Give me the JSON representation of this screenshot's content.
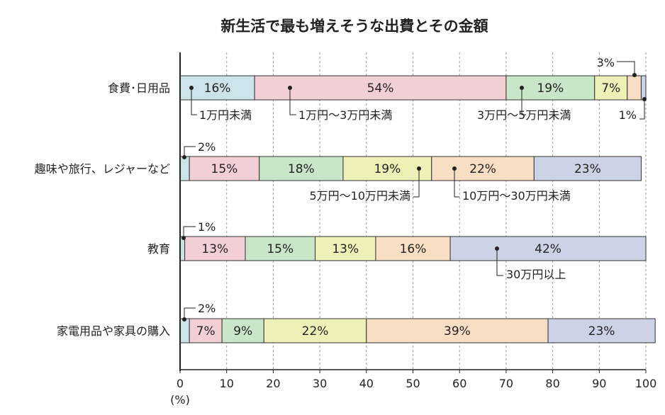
{
  "chart_data": {
    "type": "bar",
    "orientation": "horizontal",
    "stacked": true,
    "title": "新生活で最も増えそうな出費とその金額",
    "unit_label": "(%)",
    "xlim": [
      0,
      100
    ],
    "xticks": [
      "0",
      "10",
      "20",
      "30",
      "40",
      "50",
      "60",
      "70",
      "80",
      "90",
      "100"
    ],
    "grid": true,
    "categories": [
      "食費･日用品",
      "趣味や旅行、レジャーなど",
      "教育",
      "家電用品や家具の購入"
    ],
    "series": [
      {
        "name": "1万円未満",
        "color": "#cde3ea",
        "values": [
          16,
          2,
          1,
          2
        ],
        "labels": [
          "16%",
          "",
          "",
          ""
        ]
      },
      {
        "name": "1万円〜3万円未満",
        "color": "#f2cfd5",
        "values": [
          54,
          15,
          13,
          7
        ],
        "labels": [
          "54%",
          "15%",
          "13%",
          "7%"
        ]
      },
      {
        "name": "3万円〜5万円未満",
        "color": "#c9e6c9",
        "values": [
          19,
          18,
          15,
          9
        ],
        "labels": [
          "19%",
          "18%",
          "15%",
          "9%"
        ]
      },
      {
        "name": "5万円〜10万円未満",
        "color": "#eef0b8",
        "values": [
          7,
          19,
          13,
          22
        ],
        "labels": [
          "7%",
          "19%",
          "13%",
          "22%"
        ]
      },
      {
        "name": "10万円〜30万円未満",
        "color": "#f8dec3",
        "values": [
          3,
          22,
          16,
          39
        ],
        "labels": [
          "",
          "22%",
          "16%",
          "39%"
        ]
      },
      {
        "name": "30万円以上",
        "color": "#cdd3e6",
        "values": [
          1,
          23,
          42,
          23
        ],
        "labels": [
          "",
          "23%",
          "42%",
          "23%"
        ]
      }
    ],
    "annotations": [
      {
        "text": "1万円未満"
      },
      {
        "text": "1万円〜3万円未満"
      },
      {
        "text": "3万円〜5万円未満"
      },
      {
        "text": "5万円〜10万円未満"
      },
      {
        "text": "10万円〜30万円未満"
      },
      {
        "text": "30万円以上"
      },
      {
        "text": "3%"
      },
      {
        "text": "1%"
      },
      {
        "text": "2%"
      },
      {
        "text": "1%"
      },
      {
        "text": "2%"
      }
    ]
  }
}
